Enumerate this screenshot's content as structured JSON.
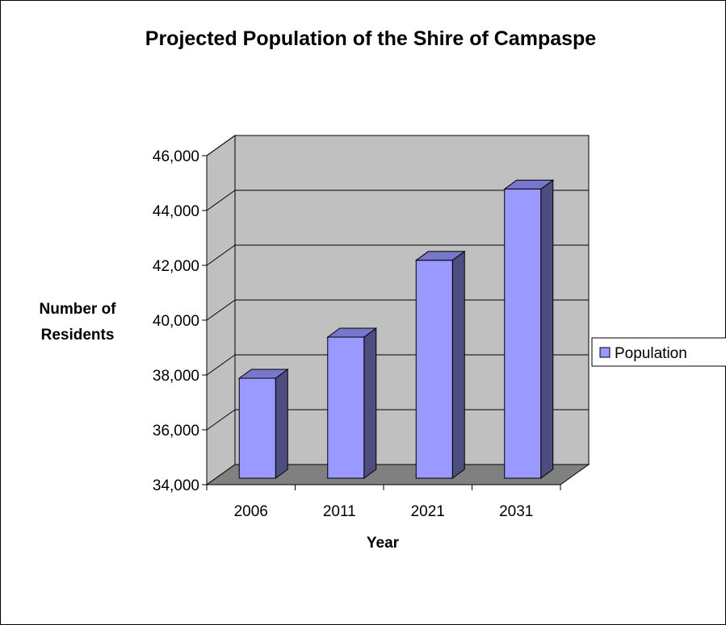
{
  "chart_data": {
    "type": "bar",
    "title": "Projected Population of the Shire of Campaspe",
    "xlabel": "Year",
    "ylabel": [
      "Number of",
      "Residents"
    ],
    "categories": [
      "2006",
      "2011",
      "2021",
      "2031"
    ],
    "series": [
      {
        "name": "Population",
        "values": [
          38000,
          39500,
          42300,
          44900
        ]
      }
    ],
    "ylim": [
      34000,
      46000
    ],
    "yticks": [
      "34,000",
      "36,000",
      "38,000",
      "40,000",
      "42,000",
      "44,000",
      "46,000"
    ],
    "ytick_values": [
      34000,
      36000,
      38000,
      40000,
      42000,
      44000,
      46000
    ],
    "grid": true,
    "legend_position": "right",
    "colors": {
      "bar_front": "#9999ff",
      "bar_side": "#4d4d80",
      "bar_top": "#7777cc",
      "wall": "#c0c0c0",
      "floor": "#808080",
      "side_wall": "#c0c0c0"
    }
  }
}
